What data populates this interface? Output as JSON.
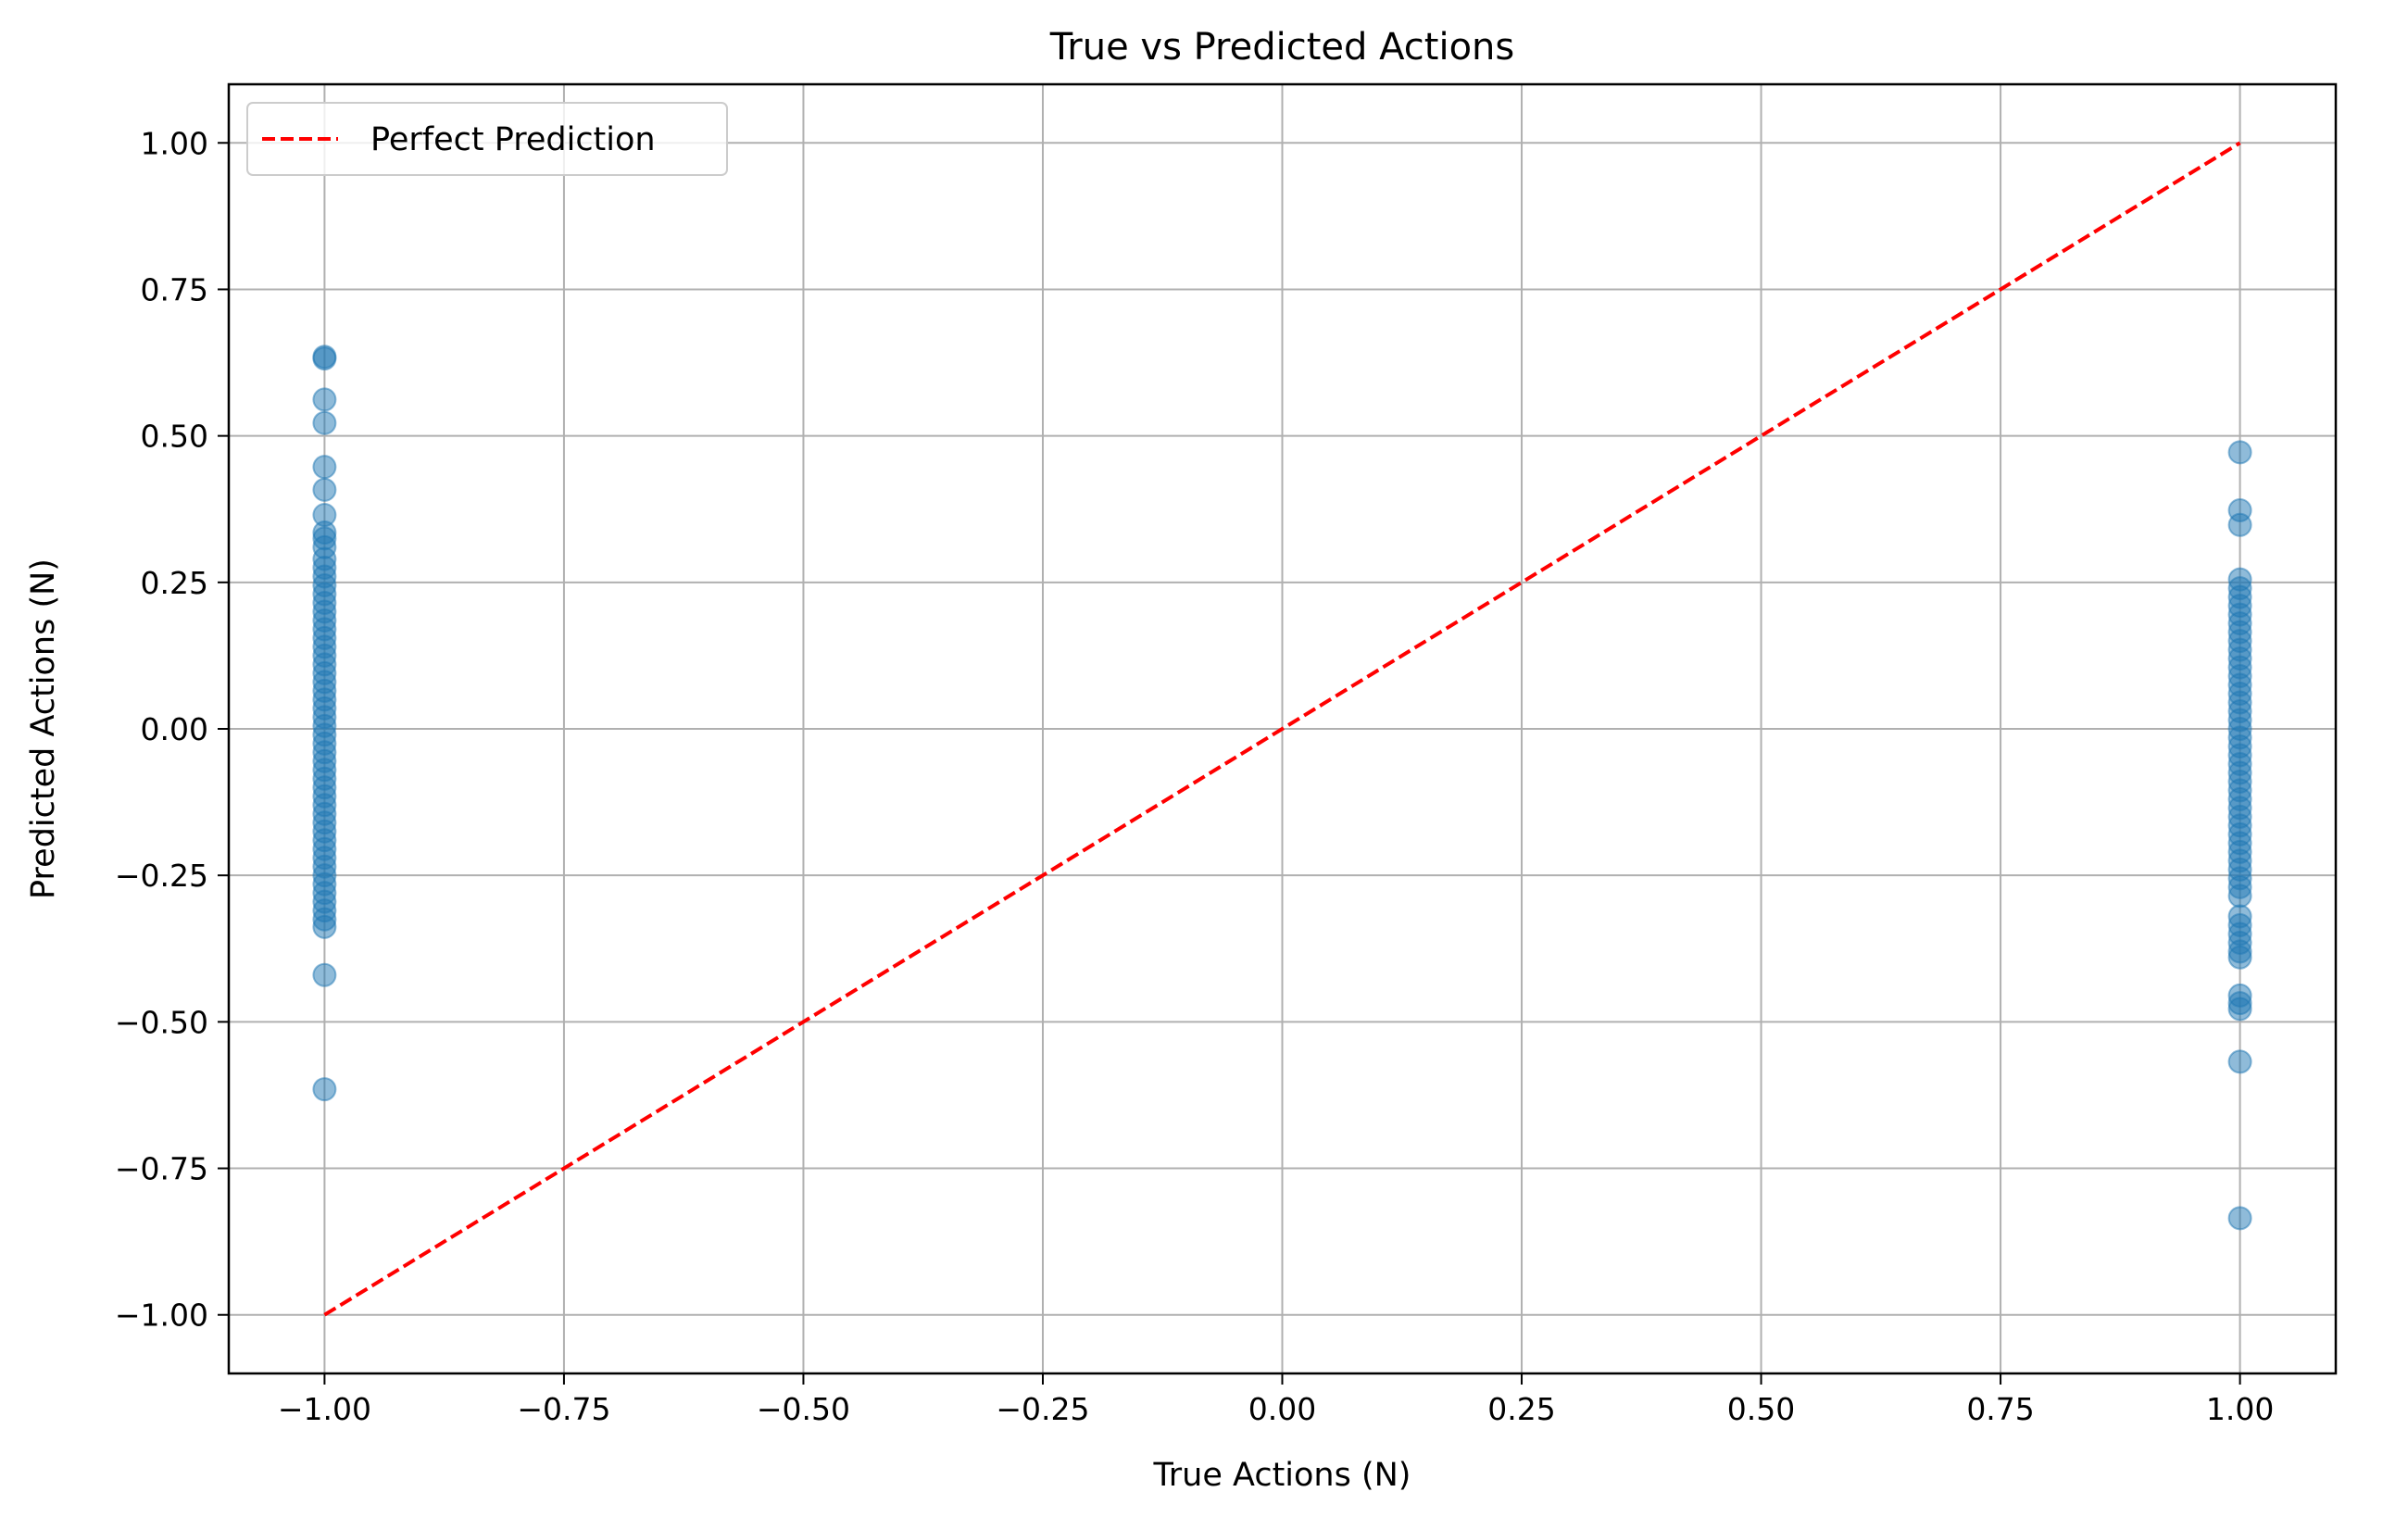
{
  "chart_data": {
    "type": "scatter",
    "title": "True vs Predicted Actions",
    "xlabel": "True Actions (N)",
    "ylabel": "Predicted Actions (N)",
    "xlim": [
      -1.1,
      1.1
    ],
    "ylim": [
      -1.1,
      1.1
    ],
    "grid": true,
    "legend_position": "top-left",
    "x_ticks": [
      -1.0,
      -0.75,
      -0.5,
      -0.25,
      0.0,
      0.25,
      0.5,
      0.75,
      1.0
    ],
    "x_tick_labels": [
      "−1.00",
      "−0.75",
      "−0.50",
      "−0.25",
      "0.00",
      "0.25",
      "0.50",
      "0.75",
      "1.00"
    ],
    "y_ticks": [
      1.0,
      0.75,
      0.5,
      0.25,
      0.0,
      -0.25,
      -0.5,
      -0.75,
      -1.0
    ],
    "y_tick_labels": [
      "1.00",
      "0.75",
      "0.50",
      "0.25",
      "0.00",
      "−0.25",
      "−0.50",
      "−0.75",
      "−1.00"
    ],
    "series": [
      {
        "kind": "scatter",
        "color": "#1f77b4",
        "alpha": 0.5,
        "points": [
          {
            "x": -1.0,
            "y": 0.635
          },
          {
            "x": -1.0,
            "y": 0.632
          },
          {
            "x": -1.0,
            "y": 0.562
          },
          {
            "x": -1.0,
            "y": 0.522
          },
          {
            "x": -1.0,
            "y": 0.447
          },
          {
            "x": -1.0,
            "y": 0.408
          },
          {
            "x": -1.0,
            "y": 0.365
          },
          {
            "x": -1.0,
            "y": 0.335
          },
          {
            "x": -1.0,
            "y": 0.325
          },
          {
            "x": -1.0,
            "y": 0.31
          },
          {
            "x": -1.0,
            "y": 0.29
          },
          {
            "x": -1.0,
            "y": 0.275
          },
          {
            "x": -1.0,
            "y": 0.26
          },
          {
            "x": -1.0,
            "y": 0.245
          },
          {
            "x": -1.0,
            "y": 0.23
          },
          {
            "x": -1.0,
            "y": 0.215
          },
          {
            "x": -1.0,
            "y": 0.2
          },
          {
            "x": -1.0,
            "y": 0.185
          },
          {
            "x": -1.0,
            "y": 0.17
          },
          {
            "x": -1.0,
            "y": 0.155
          },
          {
            "x": -1.0,
            "y": 0.14
          },
          {
            "x": -1.0,
            "y": 0.125
          },
          {
            "x": -1.0,
            "y": 0.11
          },
          {
            "x": -1.0,
            "y": 0.095
          },
          {
            "x": -1.0,
            "y": 0.08
          },
          {
            "x": -1.0,
            "y": 0.065
          },
          {
            "x": -1.0,
            "y": 0.05
          },
          {
            "x": -1.0,
            "y": 0.035
          },
          {
            "x": -1.0,
            "y": 0.02
          },
          {
            "x": -1.0,
            "y": 0.005
          },
          {
            "x": -1.0,
            "y": -0.01
          },
          {
            "x": -1.0,
            "y": -0.025
          },
          {
            "x": -1.0,
            "y": -0.04
          },
          {
            "x": -1.0,
            "y": -0.055
          },
          {
            "x": -1.0,
            "y": -0.07
          },
          {
            "x": -1.0,
            "y": -0.085
          },
          {
            "x": -1.0,
            "y": -0.1
          },
          {
            "x": -1.0,
            "y": -0.115
          },
          {
            "x": -1.0,
            "y": -0.13
          },
          {
            "x": -1.0,
            "y": -0.145
          },
          {
            "x": -1.0,
            "y": -0.16
          },
          {
            "x": -1.0,
            "y": -0.175
          },
          {
            "x": -1.0,
            "y": -0.19
          },
          {
            "x": -1.0,
            "y": -0.205
          },
          {
            "x": -1.0,
            "y": -0.22
          },
          {
            "x": -1.0,
            "y": -0.235
          },
          {
            "x": -1.0,
            "y": -0.25
          },
          {
            "x": -1.0,
            "y": -0.265
          },
          {
            "x": -1.0,
            "y": -0.28
          },
          {
            "x": -1.0,
            "y": -0.295
          },
          {
            "x": -1.0,
            "y": -0.31
          },
          {
            "x": -1.0,
            "y": -0.325
          },
          {
            "x": -1.0,
            "y": -0.338
          },
          {
            "x": -1.0,
            "y": -0.42
          },
          {
            "x": -1.0,
            "y": -0.615
          },
          {
            "x": 1.0,
            "y": 0.472
          },
          {
            "x": 1.0,
            "y": 0.373
          },
          {
            "x": 1.0,
            "y": 0.348
          },
          {
            "x": 1.0,
            "y": 0.255
          },
          {
            "x": 1.0,
            "y": 0.24
          },
          {
            "x": 1.0,
            "y": 0.225
          },
          {
            "x": 1.0,
            "y": 0.21
          },
          {
            "x": 1.0,
            "y": 0.195
          },
          {
            "x": 1.0,
            "y": 0.18
          },
          {
            "x": 1.0,
            "y": 0.165
          },
          {
            "x": 1.0,
            "y": 0.15
          },
          {
            "x": 1.0,
            "y": 0.135
          },
          {
            "x": 1.0,
            "y": 0.12
          },
          {
            "x": 1.0,
            "y": 0.105
          },
          {
            "x": 1.0,
            "y": 0.09
          },
          {
            "x": 1.0,
            "y": 0.075
          },
          {
            "x": 1.0,
            "y": 0.06
          },
          {
            "x": 1.0,
            "y": 0.045
          },
          {
            "x": 1.0,
            "y": 0.03
          },
          {
            "x": 1.0,
            "y": 0.015
          },
          {
            "x": 1.0,
            "y": 0.0
          },
          {
            "x": 1.0,
            "y": -0.015
          },
          {
            "x": 1.0,
            "y": -0.03
          },
          {
            "x": 1.0,
            "y": -0.045
          },
          {
            "x": 1.0,
            "y": -0.06
          },
          {
            "x": 1.0,
            "y": -0.075
          },
          {
            "x": 1.0,
            "y": -0.09
          },
          {
            "x": 1.0,
            "y": -0.105
          },
          {
            "x": 1.0,
            "y": -0.12
          },
          {
            "x": 1.0,
            "y": -0.135
          },
          {
            "x": 1.0,
            "y": -0.15
          },
          {
            "x": 1.0,
            "y": -0.165
          },
          {
            "x": 1.0,
            "y": -0.18
          },
          {
            "x": 1.0,
            "y": -0.195
          },
          {
            "x": 1.0,
            "y": -0.21
          },
          {
            "x": 1.0,
            "y": -0.225
          },
          {
            "x": 1.0,
            "y": -0.24
          },
          {
            "x": 1.0,
            "y": -0.255
          },
          {
            "x": 1.0,
            "y": -0.27
          },
          {
            "x": 1.0,
            "y": -0.285
          },
          {
            "x": 1.0,
            "y": -0.32
          },
          {
            "x": 1.0,
            "y": -0.335
          },
          {
            "x": 1.0,
            "y": -0.35
          },
          {
            "x": 1.0,
            "y": -0.365
          },
          {
            "x": 1.0,
            "y": -0.38
          },
          {
            "x": 1.0,
            "y": -0.39
          },
          {
            "x": 1.0,
            "y": -0.455
          },
          {
            "x": 1.0,
            "y": -0.468
          },
          {
            "x": 1.0,
            "y": -0.478
          },
          {
            "x": 1.0,
            "y": -0.568
          },
          {
            "x": 1.0,
            "y": -0.835
          }
        ]
      },
      {
        "name": "Perfect Prediction",
        "kind": "line",
        "style": "dashed",
        "color": "#ff0000",
        "x": [
          -1.0,
          1.0
        ],
        "y": [
          -1.0,
          1.0
        ]
      }
    ]
  }
}
